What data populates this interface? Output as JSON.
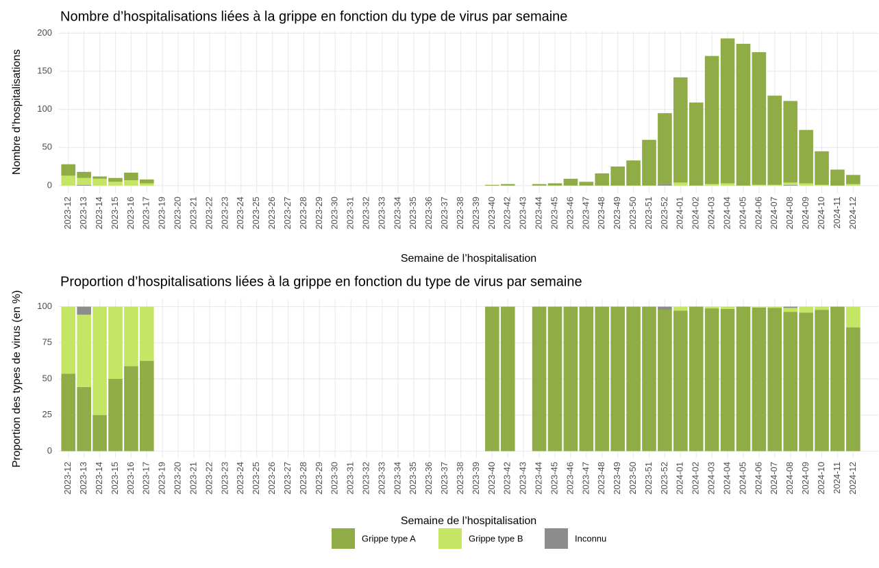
{
  "chart_data": [
    {
      "type": "bar",
      "stacked": true,
      "title": "Nombre d’hospitalisations liées à la grippe en fonction du type de virus par semaine",
      "x_label": "Semaine de l’hospitalisation",
      "y_label": "Nombre d’hospitalisations",
      "categories": [
        "2023-12",
        "2023-13",
        "2023-14",
        "2023-15",
        "2023-16",
        "2023-17",
        "2023-19",
        "2023-20",
        "2023-21",
        "2023-22",
        "2023-23",
        "2023-24",
        "2023-25",
        "2023-26",
        "2023-27",
        "2023-28",
        "2023-29",
        "2023-30",
        "2023-31",
        "2023-32",
        "2023-33",
        "2023-34",
        "2023-35",
        "2023-36",
        "2023-37",
        "2023-38",
        "2023-39",
        "2023-40",
        "2023-42",
        "2023-43",
        "2023-44",
        "2023-45",
        "2023-46",
        "2023-47",
        "2023-48",
        "2023-49",
        "2023-50",
        "2023-51",
        "2023-52",
        "2024-01",
        "2024-02",
        "2024-03",
        "2024-04",
        "2024-05",
        "2024-06",
        "2024-07",
        "2024-08",
        "2024-09",
        "2024-10",
        "2024-11",
        "2024-12"
      ],
      "series": [
        {
          "name": "Grippe type A",
          "color": "#8fac46",
          "values": [
            15,
            8,
            3,
            5,
            10,
            5,
            0,
            0,
            0,
            0,
            0,
            0,
            0,
            0,
            0,
            0,
            0,
            0,
            0,
            0,
            0,
            0,
            0,
            0,
            0,
            0,
            0,
            1,
            2,
            0,
            2,
            3,
            9,
            5,
            16,
            25,
            33,
            60,
            93,
            138,
            109,
            168,
            190,
            186,
            174,
            117,
            107,
            70,
            44,
            21,
            12
          ]
        },
        {
          "name": "Grippe type B",
          "color": "#c5e665",
          "values": [
            13,
            9,
            9,
            5,
            7,
            3,
            0,
            0,
            0,
            0,
            0,
            0,
            0,
            0,
            0,
            0,
            0,
            0,
            0,
            0,
            0,
            0,
            0,
            0,
            0,
            0,
            0,
            0,
            0,
            0,
            0,
            0,
            0,
            0,
            0,
            0,
            0,
            0,
            0,
            4,
            0,
            2,
            3,
            0,
            1,
            1,
            3,
            3,
            1,
            0,
            2
          ]
        },
        {
          "name": "Inconnu",
          "color": "#8c8c8c",
          "values": [
            0,
            1,
            0,
            0,
            0,
            0,
            0,
            0,
            0,
            0,
            0,
            0,
            0,
            0,
            0,
            0,
            0,
            0,
            0,
            0,
            0,
            0,
            0,
            0,
            0,
            0,
            0,
            0,
            0,
            0,
            0,
            0,
            0,
            0,
            0,
            0,
            0,
            0,
            2,
            0,
            0,
            0,
            0,
            0,
            0,
            0,
            1,
            0,
            0,
            0,
            0
          ]
        }
      ],
      "ylim": [
        -10,
        203
      ],
      "yticks": [
        0,
        50,
        100,
        150,
        200
      ],
      "grid": true,
      "legend": "bottom"
    },
    {
      "type": "bar",
      "stacked": true,
      "title": "Proportion d’hospitalisations liées à la grippe en fonction du type de virus par semaine",
      "x_label": "Semaine de l’hospitalisation",
      "y_label": "Proportion des types de virus (en %)",
      "categories": [
        "2023-12",
        "2023-13",
        "2023-14",
        "2023-15",
        "2023-16",
        "2023-17",
        "2023-19",
        "2023-20",
        "2023-21",
        "2023-22",
        "2023-23",
        "2023-24",
        "2023-25",
        "2023-26",
        "2023-27",
        "2023-28",
        "2023-29",
        "2023-30",
        "2023-31",
        "2023-32",
        "2023-33",
        "2023-34",
        "2023-35",
        "2023-36",
        "2023-37",
        "2023-38",
        "2023-39",
        "2023-40",
        "2023-42",
        "2023-43",
        "2023-44",
        "2023-45",
        "2023-46",
        "2023-47",
        "2023-48",
        "2023-49",
        "2023-50",
        "2023-51",
        "2023-52",
        "2024-01",
        "2024-02",
        "2024-03",
        "2024-04",
        "2024-05",
        "2024-06",
        "2024-07",
        "2024-08",
        "2024-09",
        "2024-10",
        "2024-11",
        "2024-12"
      ],
      "series": [
        {
          "color": "#8fac46",
          "values": [
            53.6,
            44.4,
            25,
            50,
            58.8,
            62.5,
            0,
            0,
            0,
            0,
            0,
            0,
            0,
            0,
            0,
            0,
            0,
            0,
            0,
            0,
            0,
            0,
            0,
            0,
            0,
            0,
            0,
            100,
            100,
            0,
            100,
            100,
            100,
            100,
            100,
            100,
            100,
            100,
            97.9,
            97.2,
            100,
            98.8,
            98.4,
            100,
            99.4,
            99.2,
            96.4,
            95.9,
            97.8,
            100,
            85.7
          ]
        },
        {
          "color": "#c5e665",
          "values": [
            46.4,
            50,
            75,
            50,
            41.2,
            37.5,
            0,
            0,
            0,
            0,
            0,
            0,
            0,
            0,
            0,
            0,
            0,
            0,
            0,
            0,
            0,
            0,
            0,
            0,
            0,
            0,
            0,
            0,
            0,
            0,
            0,
            0,
            0,
            0,
            0,
            0,
            0,
            0,
            0,
            2.8,
            0,
            1.2,
            1.6,
            0,
            0.6,
            0.8,
            2.7,
            4.1,
            2.2,
            0,
            14.3
          ]
        },
        {
          "color": "#8c8c8c",
          "values": [
            0,
            5.6,
            0,
            0,
            0,
            0,
            0,
            0,
            0,
            0,
            0,
            0,
            0,
            0,
            0,
            0,
            0,
            0,
            0,
            0,
            0,
            0,
            0,
            0,
            0,
            0,
            0,
            0,
            0,
            0,
            0,
            0,
            0,
            0,
            0,
            0,
            0,
            0,
            2.1,
            0,
            0,
            0,
            0,
            0,
            0,
            0,
            0.9,
            0,
            0,
            0,
            0
          ]
        }
      ],
      "ylim": [
        -5,
        105
      ],
      "yticks": [
        0,
        25,
        50,
        75,
        100
      ],
      "grid": true
    }
  ]
}
